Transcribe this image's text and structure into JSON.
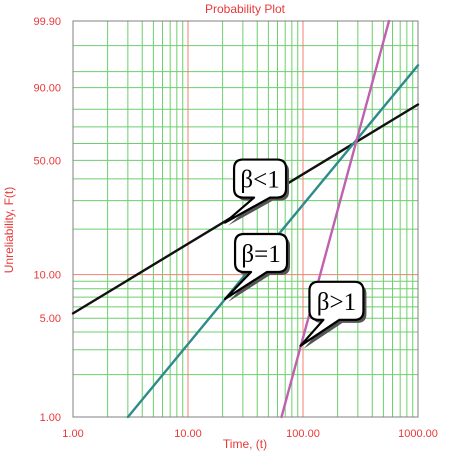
{
  "colors": {
    "background": "#ffffff",
    "plot_background": "#ffffff",
    "minor_grid": "#6ccf6c",
    "major_grid": "#f08070",
    "text": "#e8393a",
    "frame": "#808080",
    "callout_border": "#000000"
  },
  "chart_data": {
    "type": "line",
    "title": "Probability Plot",
    "xlabel": "Time, (t)",
    "ylabel": "Unreliability, F(t)",
    "xscale": "log",
    "yscale": "weibull",
    "xlim": [
      1,
      1000
    ],
    "ylim": [
      1,
      99.9
    ],
    "grid": true,
    "x_tick_labels": [
      "1.00",
      "10.00",
      "100.00",
      "1000.00"
    ],
    "x_ticks": [
      1,
      10,
      100,
      1000
    ],
    "y_tick_labels": [
      "1.00",
      "5.00",
      "10.00",
      "50.00",
      "90.00",
      "99.90"
    ],
    "y_ticks": [
      1,
      5,
      10,
      50,
      90,
      99.9
    ],
    "series": [
      {
        "color": "#111111",
        "x": [
          1,
          1000
        ],
        "y": [
          5.4,
          82.5
        ]
      },
      {
        "color": "#2e8b8b",
        "x": [
          3,
          1000
        ],
        "y": [
          1,
          96.4
        ]
      },
      {
        "color": "#c060b0",
        "x": [
          65,
          560
        ],
        "y": [
          1,
          99.9
        ]
      }
    ],
    "annotations": [
      {
        "text": "β<1",
        "target_x": 21,
        "target_y": 22
      },
      {
        "text": "β=1",
        "target_x": 21,
        "target_y": 6.8
      },
      {
        "text": "β>1",
        "target_x": 95,
        "target_y": 3.2
      }
    ]
  }
}
